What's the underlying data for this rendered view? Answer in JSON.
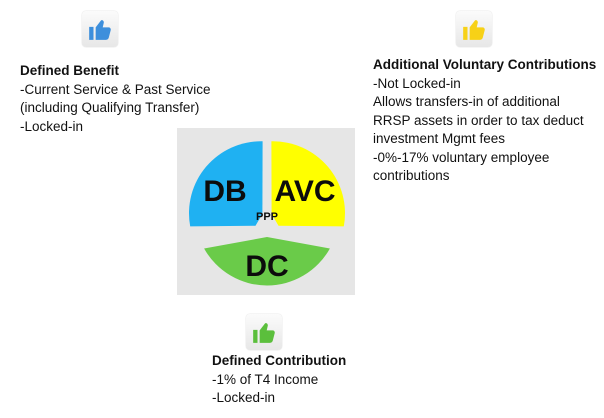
{
  "colors": {
    "db": "#1fb1f2",
    "avc": "#ffff00",
    "dc": "#6acb49",
    "ppp_text": "#2a4f80",
    "thumb_db": "#3d8fdc",
    "thumb_avc": "#f7d117",
    "thumb_dc": "#5bbf3c"
  },
  "icons": {
    "db": "thumbs-up-icon",
    "avc": "thumbs-up-icon",
    "dc": "thumbs-up-icon"
  },
  "defined_benefit": {
    "title": "Defined Benefit",
    "lines": [
      "-Current Service & Past Service",
      "(including Qualifying Transfer)",
      "-Locked-in"
    ]
  },
  "avc": {
    "title": "Additional Voluntary Contributions",
    "lines": [
      "-Not Locked-in",
      "Allows transfers-in of additional",
      "RRSP assets in order to tax deduct",
      "investment Mgmt fees",
      "-0%-17% voluntary employee",
      "contributions"
    ]
  },
  "defined_contribution": {
    "title": "Defined Contribution",
    "lines": [
      "-1% of T4 Income",
      "-Locked-in"
    ]
  },
  "diagram": {
    "segments": {
      "db": "DB",
      "avc": "AVC",
      "dc": "DC"
    },
    "center": "PPP"
  }
}
